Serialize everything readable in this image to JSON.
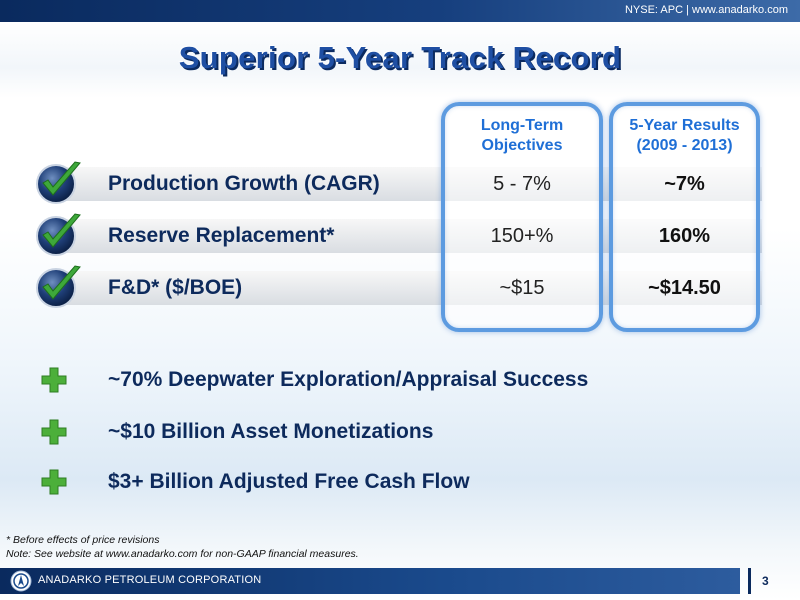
{
  "header": {
    "ticker": "NYSE: APC | www.anadarko.com"
  },
  "title": "Superior 5-Year Track Record",
  "columns": {
    "objectives_line1": "Long-Term",
    "objectives_line2": "Objectives",
    "results_line1": "5-Year Results",
    "results_line2": "(2009 - 2013)"
  },
  "rows": [
    {
      "label": "Production Growth (CAGR)",
      "objective": "5 - 7%",
      "result": "~7%"
    },
    {
      "label": "Reserve Replacement*",
      "objective": "150+%",
      "result": "160%"
    },
    {
      "label": "F&D* ($/BOE)",
      "objective": "~$15",
      "result": "~$14.50"
    }
  ],
  "bullets": [
    "~70% Deepwater Exploration/Appraisal Success",
    "~$10 Billion Asset Monetizations",
    "$3+ Billion Adjusted Free Cash Flow"
  ],
  "footnotes": {
    "line1": "* Before effects of price revisions",
    "line2": "Note: See website at www.anadarko.com for non-GAAP financial measures."
  },
  "footer": {
    "company": "ANADARKO PETROLEUM CORPORATION",
    "page": "3"
  },
  "colors": {
    "accent": "#1f6fd6",
    "navy": "#0d2a5c",
    "check_green": "#3ea83a",
    "plus_green": "#4caf3a"
  },
  "icons": {
    "row_marker": "checkmark-circle-icon",
    "bullet_marker": "plus-icon",
    "logo": "anadarko-logo-icon"
  }
}
